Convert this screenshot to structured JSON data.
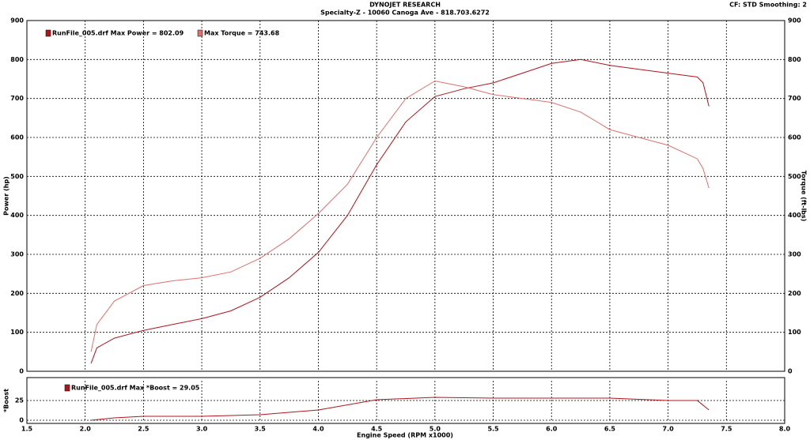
{
  "chart_data": [
    {
      "type": "line",
      "title": "DYNOJET RESEARCH",
      "subtitle": "Specialty-Z - 10060 Canoga Ave - 818.703.6272",
      "corner_note": "CF: STD  Smoothing: 2",
      "y_label": "Power (hp)",
      "y2_label": "Torque (ft-lbs)",
      "x": [
        2.05,
        2.1,
        2.25,
        2.5,
        2.75,
        3.0,
        3.25,
        3.5,
        3.75,
        4.0,
        4.25,
        4.5,
        4.75,
        5.0,
        5.25,
        5.5,
        5.75,
        6.0,
        6.25,
        6.5,
        6.75,
        7.0,
        7.25,
        7.3,
        7.35
      ],
      "series": [
        {
          "name": "RunFile_005.drf Max Power = 802.09",
          "color": "#b0141c",
          "values": [
            20,
            60,
            85,
            105,
            120,
            135,
            155,
            190,
            240,
            305,
            400,
            530,
            640,
            705,
            725,
            740,
            765,
            790,
            800,
            785,
            775,
            765,
            755,
            740,
            680
          ]
        },
        {
          "name": "Max Torque = 743.68",
          "color": "#e07070",
          "axis": "y2",
          "values": [
            50,
            120,
            180,
            220,
            232,
            240,
            255,
            290,
            340,
            405,
            480,
            600,
            700,
            745,
            730,
            710,
            700,
            690,
            665,
            620,
            600,
            580,
            545,
            520,
            470
          ]
        }
      ],
      "xlim": [
        1.5,
        8.0
      ],
      "ylim": [
        0,
        900
      ],
      "yticks": [
        0,
        100,
        200,
        300,
        400,
        500,
        600,
        700,
        800,
        900
      ],
      "y2lim": [
        0,
        900
      ],
      "y2ticks": [
        0,
        100,
        200,
        300,
        400,
        500,
        600,
        700,
        800,
        900
      ],
      "grid": true
    },
    {
      "type": "line",
      "y_label": "*Boost",
      "x_label": "Engine Speed (RPM x1000)",
      "x": [
        2.05,
        2.25,
        2.5,
        3.0,
        3.5,
        4.0,
        4.5,
        5.0,
        5.5,
        6.0,
        6.5,
        7.0,
        7.25,
        7.35
      ],
      "series": [
        {
          "name": "RunFile_005.drf Max *Boost = 29.05",
          "color": "#b0141c",
          "values": [
            0,
            3,
            5,
            5,
            7,
            13,
            26,
            29,
            28,
            28,
            28,
            25,
            25,
            13
          ]
        }
      ],
      "xlim": [
        1.5,
        8.0
      ],
      "xticks": [
        1.5,
        {
          "value": 2.0,
          "label": "2.0"
        },
        2.5,
        {
          "value": 3.0,
          "label": "3.0"
        },
        3.5,
        {
          "value": 4.0,
          "label": "4.0"
        },
        4.5,
        {
          "value": 5.0,
          "label": "5.0"
        },
        5.5,
        {
          "value": 6.0,
          "label": "6.0"
        },
        6.5,
        {
          "value": 7.0,
          "label": "7.0"
        },
        7.5,
        {
          "value": 8.0,
          "label": "8.0"
        }
      ],
      "ylim": [
        0,
        50
      ],
      "yticks": [
        0,
        25
      ],
      "grid": true
    }
  ]
}
